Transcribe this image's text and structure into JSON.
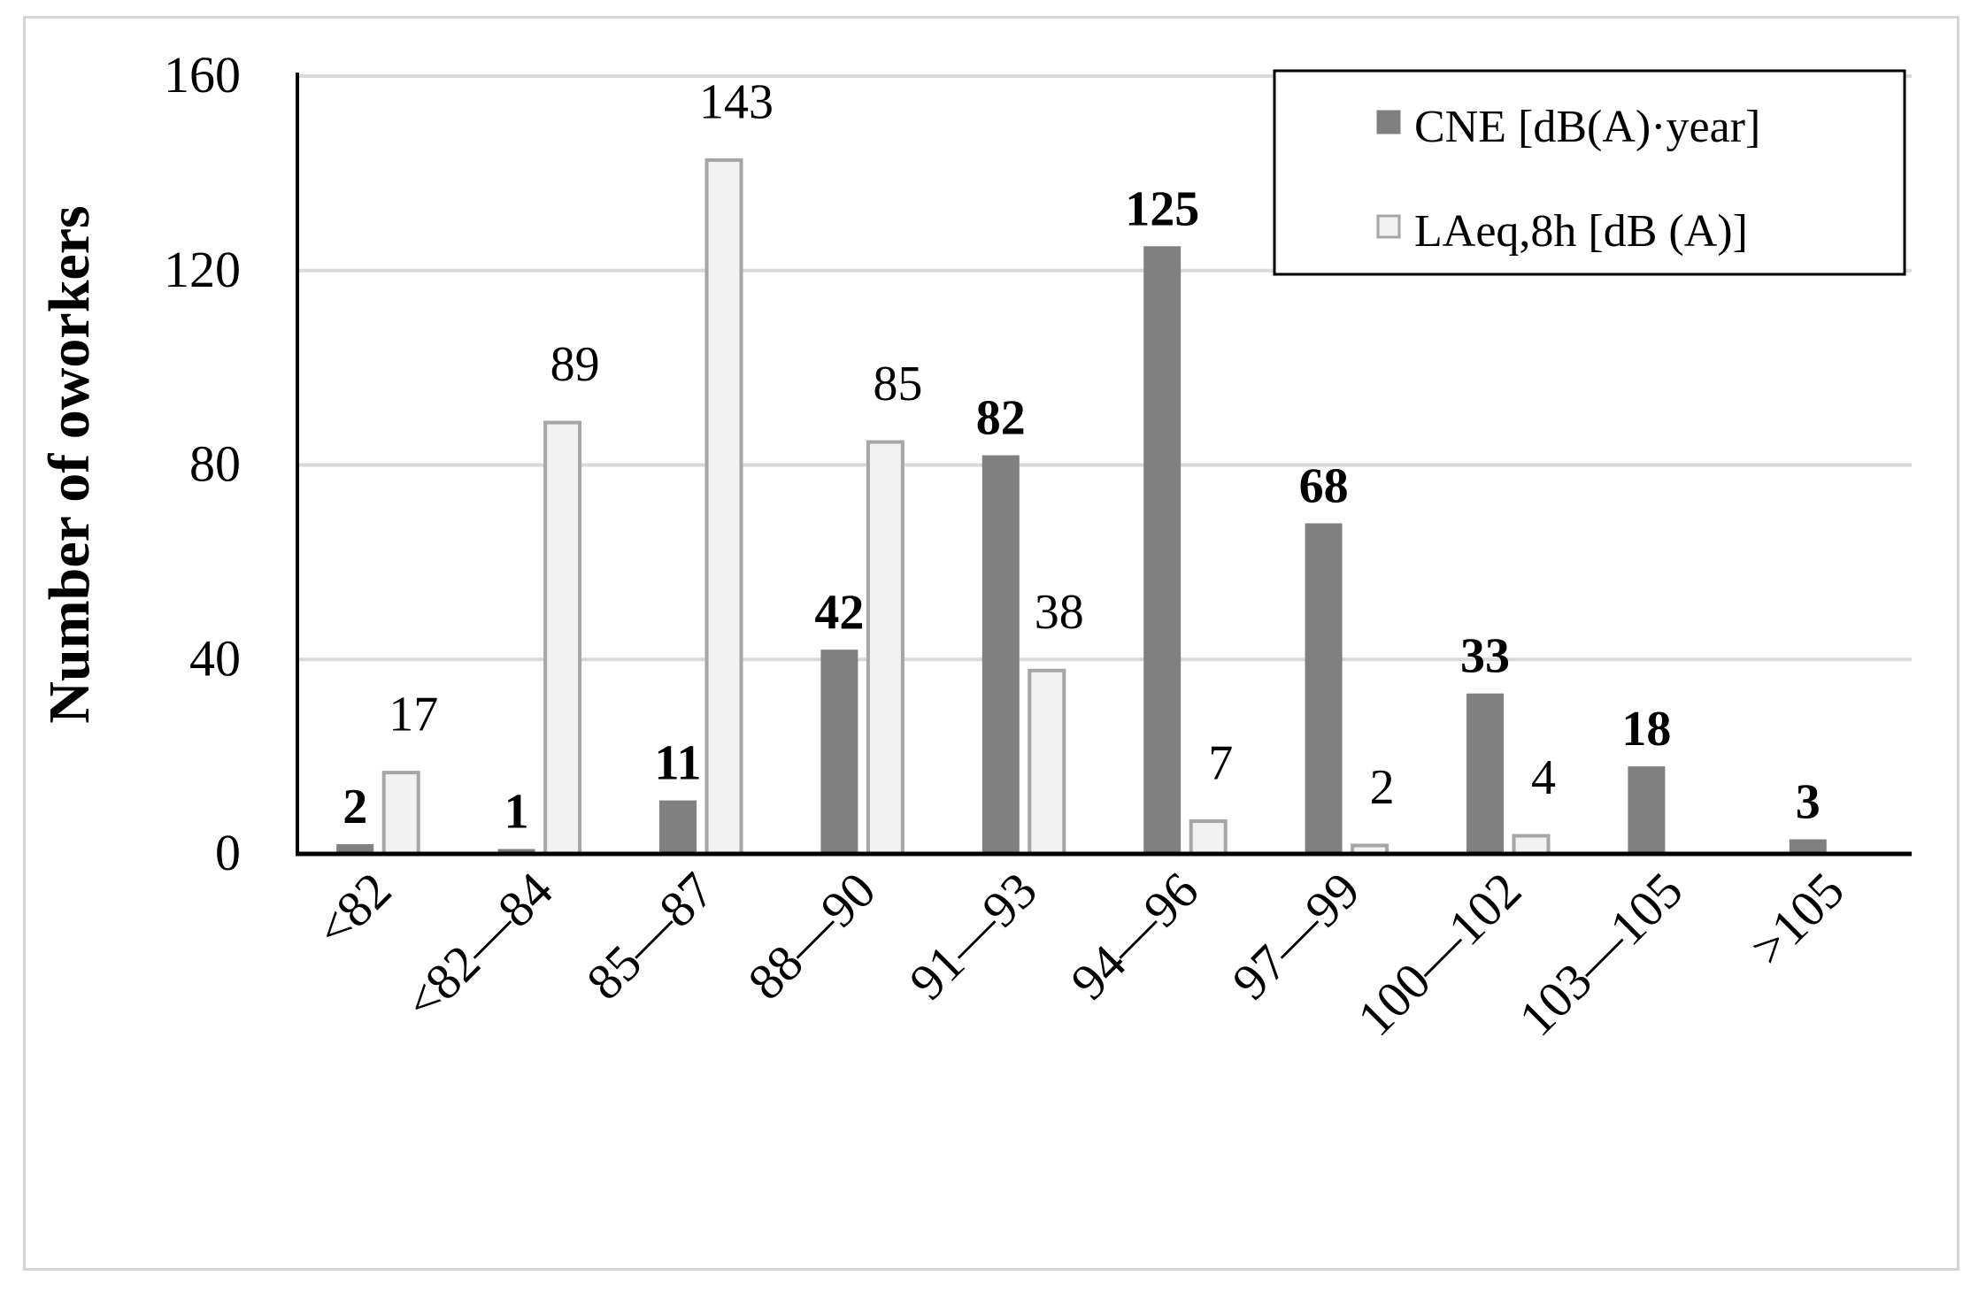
{
  "chart_data": {
    "type": "bar",
    "ylabel": "Number of oworkers",
    "xlabel": "",
    "ylim": [
      0,
      160
    ],
    "yticks": [
      0,
      40,
      80,
      120,
      160
    ],
    "grid": true,
    "legend_position": "top-right",
    "categories": [
      "<82",
      "<82—84",
      "85—87",
      "88—90",
      "91—93",
      "94—96",
      "97—99",
      "100—102",
      "103—105",
      ">105"
    ],
    "series": [
      {
        "name": "CNE [dB(A)·year]",
        "color": "#808080",
        "values": [
          2,
          1,
          11,
          42,
          82,
          125,
          68,
          33,
          18,
          3
        ],
        "labels": [
          "2",
          "1",
          "11",
          "42",
          "82",
          "125",
          "68",
          "33",
          "18",
          "3"
        ]
      },
      {
        "name": "LAeq,8h [dB (A)]",
        "color": "#f2f2f2",
        "values": [
          17,
          89,
          143,
          85,
          38,
          7,
          2,
          4,
          null,
          null
        ],
        "labels": [
          "17",
          "89",
          "143",
          "85",
          "38",
          "7",
          "2",
          "4",
          "",
          ""
        ]
      }
    ]
  }
}
